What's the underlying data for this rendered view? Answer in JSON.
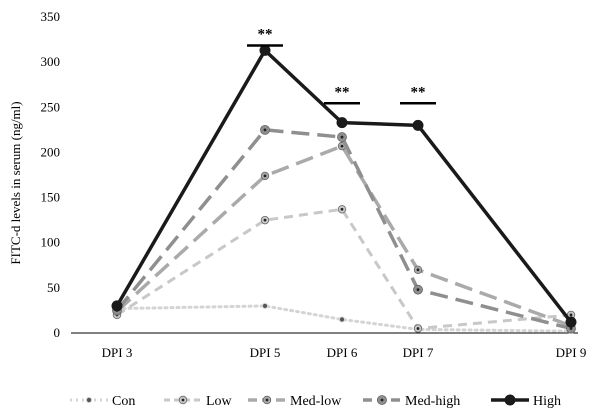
{
  "chart_data": {
    "type": "line",
    "title": "",
    "xlabel": "",
    "ylabel": "FITC-d levels in serum (ng/ml)",
    "ylim": [
      0,
      350
    ],
    "yticks": [
      0,
      50,
      100,
      150,
      200,
      250,
      300,
      350
    ],
    "x": [
      3,
      5,
      6,
      7,
      9
    ],
    "xtick_labels": [
      "DPI 3",
      "DPI 5",
      "DPI 6",
      "DPI 7",
      "DPI 9"
    ],
    "grid": false,
    "legend_position": "bottom",
    "series": [
      {
        "name": "Con",
        "values": [
          27,
          30,
          15,
          4,
          2
        ],
        "color": "#d4d4d4",
        "style": "dotted"
      },
      {
        "name": "Low",
        "values": [
          20,
          125,
          137,
          5,
          20
        ],
        "color": "#c8c8c8",
        "style": "dashed"
      },
      {
        "name": "Med-low",
        "values": [
          24,
          174,
          207,
          70,
          8
        ],
        "color": "#aaaaaa",
        "style": "longdash"
      },
      {
        "name": "Med-high",
        "values": [
          25,
          225,
          217,
          48,
          5
        ],
        "color": "#8f8f8f",
        "style": "longdash"
      },
      {
        "name": "High",
        "values": [
          30,
          313,
          233,
          230,
          12
        ],
        "color": "#1a1a1a",
        "style": "solid"
      }
    ],
    "annotations": [
      {
        "text": "**",
        "x": 5,
        "y": 324
      },
      {
        "text": "**",
        "x": 6,
        "y": 260
      },
      {
        "text": "**",
        "x": 7,
        "y": 260
      }
    ]
  }
}
